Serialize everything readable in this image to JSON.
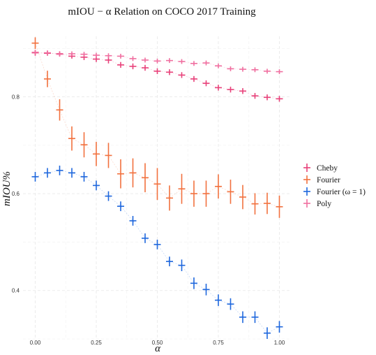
{
  "chart_data": {
    "type": "scatter",
    "title": "mIOU − α Relation on COCO 2017 Training",
    "xlabel": "α",
    "ylabel": "mIOU%",
    "xlim": [
      -0.05,
      1.05
    ],
    "ylim": [
      0.3,
      0.925
    ],
    "x_ticks": [
      0.0,
      0.25,
      0.5,
      0.75,
      1.0
    ],
    "x_tick_labels": [
      "0.00",
      "0.25",
      "0.50",
      "0.75",
      "1.00"
    ],
    "y_ticks": [
      0.4,
      0.6,
      0.8
    ],
    "y_tick_labels": [
      "0.4",
      "0.6",
      "0.8"
    ],
    "grid": true,
    "legend_position": "right",
    "x": [
      0.0,
      0.05,
      0.1,
      0.15,
      0.2,
      0.25,
      0.3,
      0.35,
      0.4,
      0.45,
      0.5,
      0.55,
      0.6,
      0.65,
      0.7,
      0.75,
      0.8,
      0.85,
      0.9,
      0.95,
      1.0
    ],
    "series": [
      {
        "name": "Cheby",
        "color": "#e8417a",
        "values": [
          0.891,
          0.89,
          0.889,
          0.884,
          0.882,
          0.878,
          0.876,
          0.866,
          0.863,
          0.86,
          0.853,
          0.851,
          0.845,
          0.837,
          0.828,
          0.819,
          0.815,
          0.812,
          0.802,
          0.799,
          0.796
        ],
        "errors": [
          0.006,
          0.005,
          0.005,
          0.005,
          0.006,
          0.006,
          0.007,
          0.006,
          0.006,
          0.006,
          0.006,
          0.006,
          0.006,
          0.006,
          0.006,
          0.006,
          0.006,
          0.006,
          0.006,
          0.006,
          0.006
        ]
      },
      {
        "name": "Fourier",
        "color": "#f2713e",
        "values": [
          0.911,
          0.837,
          0.773,
          0.714,
          0.701,
          0.682,
          0.679,
          0.641,
          0.643,
          0.633,
          0.62,
          0.591,
          0.61,
          0.6,
          0.6,
          0.615,
          0.604,
          0.593,
          0.579,
          0.58,
          0.573
        ],
        "errors": [
          0.012,
          0.017,
          0.022,
          0.025,
          0.026,
          0.025,
          0.026,
          0.03,
          0.03,
          0.03,
          0.033,
          0.026,
          0.031,
          0.027,
          0.027,
          0.025,
          0.025,
          0.025,
          0.022,
          0.022,
          0.023
        ]
      },
      {
        "name": "Fourier (ω = 1)",
        "color": "#1e67dd",
        "values": [
          0.635,
          0.643,
          0.648,
          0.643,
          0.635,
          0.617,
          0.595,
          0.574,
          0.544,
          0.508,
          0.495,
          0.46,
          0.452,
          0.415,
          0.402,
          0.38,
          0.372,
          0.345,
          0.345,
          0.312,
          0.325
        ],
        "errors": [
          0.01,
          0.01,
          0.01,
          0.01,
          0.01,
          0.01,
          0.01,
          0.01,
          0.01,
          0.01,
          0.01,
          0.01,
          0.012,
          0.012,
          0.012,
          0.012,
          0.012,
          0.012,
          0.012,
          0.012,
          0.012
        ]
      },
      {
        "name": "Poly",
        "color": "#f06fa0",
        "values": [
          0.892,
          0.891,
          0.888,
          0.889,
          0.888,
          0.886,
          0.885,
          0.884,
          0.879,
          0.876,
          0.874,
          0.875,
          0.873,
          0.869,
          0.87,
          0.864,
          0.858,
          0.857,
          0.856,
          0.853,
          0.852
        ],
        "errors": [
          0.005,
          0.005,
          0.005,
          0.005,
          0.005,
          0.005,
          0.005,
          0.005,
          0.005,
          0.005,
          0.005,
          0.005,
          0.005,
          0.005,
          0.005,
          0.005,
          0.005,
          0.005,
          0.005,
          0.005,
          0.005
        ]
      }
    ]
  }
}
